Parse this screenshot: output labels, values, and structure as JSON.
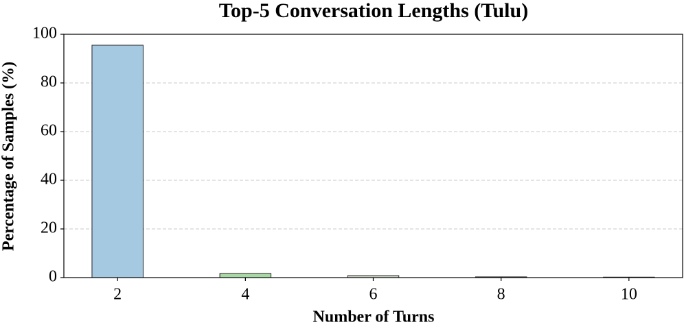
{
  "chart_data": {
    "type": "bar",
    "title": "Top-5 Conversation Lengths (Tulu)",
    "x_label": "Number of Turns",
    "y_label": "Percentage of Samples (%)",
    "categories": [
      "2",
      "4",
      "6",
      "8",
      "10"
    ],
    "values": [
      95.5,
      1.7,
      0.8,
      0.3,
      0.2
    ],
    "colors": [
      "#a6c9e2",
      "#a8d8a4",
      "#c7d3c2",
      "#d8c8a8",
      "#c8c0d8"
    ],
    "ylim": [
      0,
      100
    ],
    "yticks": [
      0,
      20,
      40,
      60,
      80,
      100
    ],
    "grid": true
  }
}
